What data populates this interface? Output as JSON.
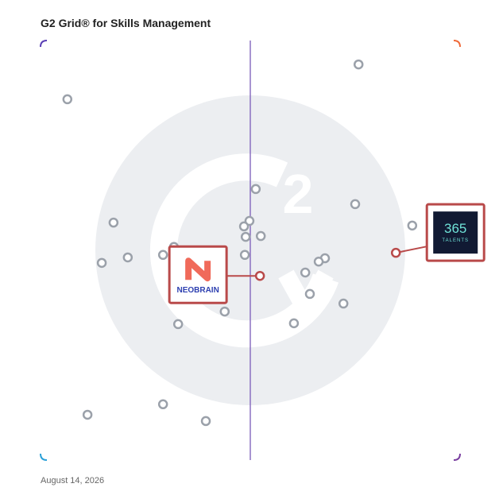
{
  "chart_data": {
    "type": "scatter",
    "title": "G2 Grid® for Skills Management",
    "date": "August 14, 2026",
    "xlim": [
      0,
      100
    ],
    "ylim": [
      0,
      100
    ],
    "dividers": {
      "x": 50,
      "y": 50
    },
    "series": [
      {
        "color": "#9ba1aa",
        "x": [
          75.8,
          6.4,
          51.3,
          75.0,
          17.4,
          49.8,
          48.5,
          88.6,
          48.9,
          52.5,
          31.8,
          29.2,
          20.8,
          14.6,
          48.7,
          67.8,
          66.3,
          63.1,
          64.2,
          72.2,
          43.9,
          32.8,
          60.4,
          11.2,
          29.2,
          39.4
        ],
        "y": [
          94.3,
          86.0,
          64.6,
          61.0,
          56.6,
          57.0,
          55.7,
          55.9,
          53.2,
          53.4,
          50.8,
          48.9,
          48.3,
          47.0,
          48.9,
          48.1,
          47.3,
          44.7,
          39.6,
          37.3,
          35.4,
          32.4,
          32.6,
          10.8,
          13.3,
          9.3
        ]
      },
      {
        "color": "#b94a4a",
        "x": [
          52.3,
          84.7
        ],
        "y": [
          43.9,
          49.4
        ],
        "labels": [
          [
            "NEOBRAIN"
          ],
          [
            "365",
            "TALENTS"
          ]
        ]
      }
    ]
  }
}
